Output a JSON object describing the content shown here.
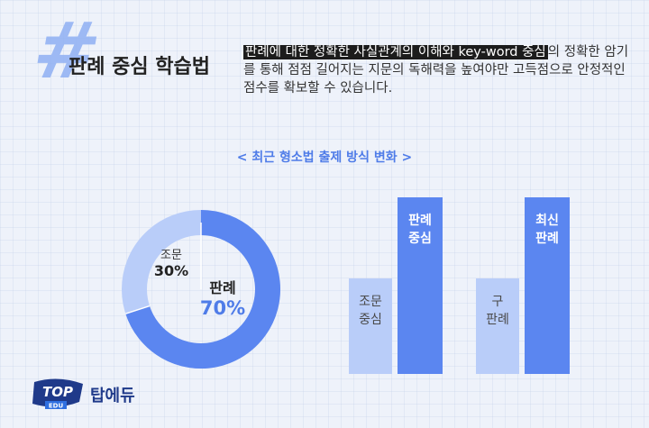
{
  "header": {
    "symbol": "#",
    "title": "판례 중심 학습법",
    "desc_highlight": "판례에 대한 정확한 사실관계의 이해와 key-word 중심",
    "desc_rest": "의 정확한 암기를 통해 점점 길어지는 지문의 독해력을 높여야만 고득점으로 안정적인 점수를 확보할 수 있습니다."
  },
  "subtitle": "< 최근 형소법 출제 방식 변화 >",
  "donut": {
    "segments": [
      {
        "label": "판례",
        "value": 70,
        "display": "70%",
        "color": "#5b86f0"
      },
      {
        "label": "조문",
        "value": 30,
        "display": "30%",
        "color": "#b9cdf9"
      }
    ]
  },
  "bars": {
    "group1": {
      "low": {
        "line1": "조문",
        "line2": "중심",
        "value": 0.54
      },
      "high": {
        "line1": "판례",
        "line2": "중심",
        "value": 1.0
      }
    },
    "group2": {
      "low": {
        "line1": "구",
        "line2": "판례",
        "value": 0.54
      },
      "high": {
        "line1": "최신",
        "line2": "판례",
        "value": 1.0
      }
    }
  },
  "logo": {
    "badge_top": "TOP",
    "badge_sub": "EDU",
    "name": "탑에듀",
    "colors": {
      "primary": "#1f3a8a",
      "accent": "#2f6fe0"
    }
  }
}
